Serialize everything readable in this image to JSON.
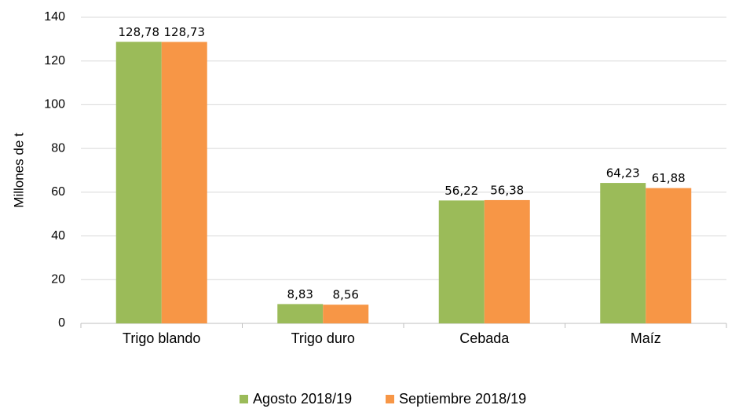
{
  "chart_data": {
    "type": "bar",
    "y_label": "Millones de t",
    "categories": [
      "Trigo blando",
      "Trigo duro",
      "Cebada",
      "Maíz"
    ],
    "series": [
      {
        "name": "Agosto 2018/19",
        "color": "#9bbb59",
        "values": [
          128.78,
          8.83,
          56.22,
          64.23
        ],
        "value_labels": [
          "128,78",
          "8,83",
          "56,22",
          "64,23"
        ]
      },
      {
        "name": "Septiembre 2018/19",
        "color": "#f79646",
        "values": [
          128.73,
          8.56,
          56.38,
          61.88
        ],
        "value_labels": [
          "128,73",
          "8,56",
          "56,38",
          "61,88"
        ]
      }
    ],
    "ylim": [
      0,
      140
    ],
    "yticks": [
      0,
      20,
      40,
      60,
      80,
      100,
      120,
      140
    ],
    "grid": true,
    "legend": "bottom"
  }
}
